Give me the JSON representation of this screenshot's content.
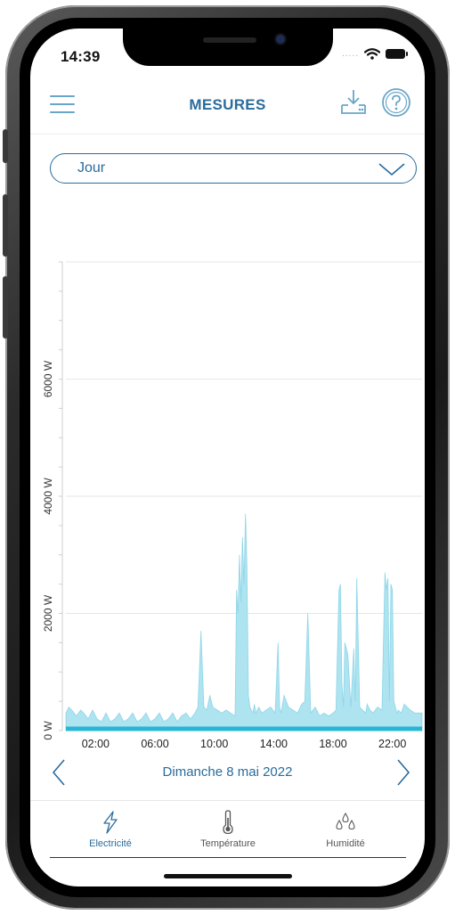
{
  "status_bar": {
    "time": "14:39",
    "signal": "....."
  },
  "header": {
    "title": "MESURES"
  },
  "period_select": {
    "value": "Jour"
  },
  "date_nav": {
    "label": "Dimanche 8 mai 2022"
  },
  "tabs": [
    {
      "label": "Electricité",
      "icon": "lightning-icon",
      "active": true
    },
    {
      "label": "Température",
      "icon": "thermometer-icon",
      "active": false
    },
    {
      "label": "Humidité",
      "icon": "droplets-icon",
      "active": false
    }
  ],
  "colors": {
    "accent": "#2a6c9c",
    "area_fill": "#aee3f0",
    "baseline": "#29b6d6",
    "grid": "#e6e6e6"
  },
  "chart_data": {
    "type": "area",
    "ylim": [
      0,
      8000
    ],
    "y_ticks": [
      {
        "value": 0,
        "label": "0 W"
      },
      {
        "value": 2000,
        "label": "2000 W"
      },
      {
        "value": 4000,
        "label": "4000 W"
      },
      {
        "value": 6000,
        "label": "6000 W"
      }
    ],
    "xlim": [
      0,
      24
    ],
    "x_ticks": [
      {
        "value": 2,
        "label": "02:00"
      },
      {
        "value": 6,
        "label": "06:00"
      },
      {
        "value": 10,
        "label": "10:00"
      },
      {
        "value": 14,
        "label": "14:00"
      },
      {
        "value": 18,
        "label": "18:00"
      },
      {
        "value": 22,
        "label": "22:00"
      }
    ],
    "x": [
      0,
      0.2,
      0.4,
      0.7,
      1,
      1.2,
      1.5,
      1.8,
      2.1,
      2.4,
      2.7,
      3,
      3.3,
      3.6,
      3.9,
      4.2,
      4.5,
      4.8,
      5.1,
      5.4,
      5.7,
      6,
      6.3,
      6.6,
      6.9,
      7.2,
      7.5,
      7.8,
      8.1,
      8.4,
      8.7,
      8.9,
      9.1,
      9.3,
      9.5,
      9.7,
      9.9,
      10.2,
      10.5,
      10.8,
      11.1,
      11.4,
      11.5,
      11.6,
      11.7,
      11.8,
      11.9,
      12,
      12.1,
      12.2,
      12.3,
      12.4,
      12.5,
      12.6,
      12.7,
      12.8,
      12.9,
      13,
      13.2,
      13.5,
      13.8,
      14.1,
      14.3,
      14.4,
      14.5,
      14.7,
      15,
      15.3,
      15.6,
      15.9,
      16.1,
      16.3,
      16.5,
      16.8,
      17.1,
      17.4,
      17.7,
      18,
      18.2,
      18.4,
      18.5,
      18.6,
      18.7,
      18.8,
      19,
      19.2,
      19.4,
      19.5,
      19.6,
      19.8,
      20,
      20.2,
      20.3,
      20.4,
      20.5,
      20.7,
      21,
      21.3,
      21.5,
      21.6,
      21.7,
      21.8,
      21.9,
      22,
      22.1,
      22.2,
      22.3,
      22.4,
      22.6,
      22.8,
      23,
      23.2,
      23.5,
      23.8,
      24
    ],
    "y": [
      300,
      400,
      350,
      250,
      350,
      300,
      200,
      350,
      200,
      150,
      300,
      150,
      200,
      300,
      150,
      200,
      300,
      150,
      200,
      300,
      150,
      200,
      300,
      150,
      200,
      300,
      150,
      250,
      300,
      200,
      300,
      400,
      1700,
      400,
      350,
      600,
      400,
      350,
      300,
      350,
      300,
      250,
      2400,
      2000,
      3000,
      2200,
      3300,
      2500,
      3700,
      2800,
      600,
      400,
      350,
      300,
      450,
      300,
      350,
      400,
      300,
      350,
      400,
      300,
      1500,
      400,
      300,
      600,
      400,
      350,
      300,
      450,
      500,
      2000,
      300,
      400,
      250,
      300,
      250,
      300,
      350,
      2400,
      2500,
      800,
      400,
      1500,
      1300,
      400,
      1400,
      500,
      2600,
      400,
      350,
      300,
      450,
      400,
      350,
      300,
      400,
      350,
      2700,
      2400,
      2600,
      500,
      2500,
      2400,
      500,
      400,
      300,
      350,
      300,
      450,
      400,
      350,
      300,
      300,
      300
    ]
  }
}
